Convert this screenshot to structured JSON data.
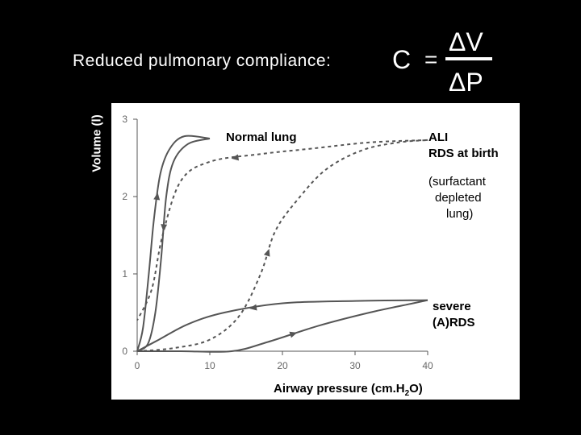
{
  "slide": {
    "title": "Reduced pulmonary compliance:",
    "formula": {
      "lhs": "C",
      "equals": "=",
      "numerator": "V",
      "denominator": "P",
      "delta_symbol": "Δ"
    }
  },
  "chart_data": {
    "type": "line",
    "xlabel_main": "Airway pressure (cm.H",
    "xlabel_sub": "2",
    "xlabel_tail": "O)",
    "ylabel": "Volume (l)",
    "xlim": [
      0,
      40
    ],
    "ylim": [
      0,
      3
    ],
    "x_ticks": [
      0,
      10,
      20,
      30,
      40
    ],
    "x_tick_labels": [
      "0",
      "10",
      "20",
      "30",
      "40"
    ],
    "y_ticks": [
      0,
      1,
      2,
      3
    ],
    "y_tick_labels": [
      "0",
      "1",
      "2",
      "3"
    ],
    "grid": false,
    "colors": {
      "line": "#555555",
      "panel": "#ffffff",
      "background": "#000000"
    },
    "series": [
      {
        "name": "Normal lung",
        "style": "solid",
        "inflation": [
          [
            0,
            0
          ],
          [
            0.8,
            0.3
          ],
          [
            1.6,
            1.0
          ],
          [
            2.3,
            1.7
          ],
          [
            3.2,
            2.3
          ],
          [
            4.5,
            2.62
          ],
          [
            6.5,
            2.78
          ],
          [
            10,
            2.75
          ]
        ],
        "deflation": [
          [
            10,
            2.75
          ],
          [
            7,
            2.68
          ],
          [
            5,
            2.45
          ],
          [
            4,
            2.0
          ],
          [
            3.3,
            1.2
          ],
          [
            2.5,
            0.5
          ],
          [
            1.5,
            0.1
          ],
          [
            0,
            0
          ]
        ]
      },
      {
        "name": "ALI RDS at birth (surfactant depleted lung)",
        "style": "dashed",
        "inflation": [
          [
            0,
            0
          ],
          [
            5,
            0.04
          ],
          [
            10,
            0.15
          ],
          [
            14,
            0.45
          ],
          [
            17,
            1.0
          ],
          [
            19,
            1.55
          ],
          [
            22,
            1.95
          ],
          [
            26,
            2.35
          ],
          [
            31,
            2.6
          ],
          [
            36,
            2.7
          ],
          [
            40,
            2.73
          ]
        ],
        "deflation": [
          [
            40,
            2.73
          ],
          [
            32,
            2.7
          ],
          [
            24,
            2.62
          ],
          [
            17,
            2.55
          ],
          [
            10,
            2.45
          ],
          [
            6,
            2.2
          ],
          [
            3.5,
            1.5
          ],
          [
            2,
            0.8
          ],
          [
            0,
            0.4
          ]
        ]
      },
      {
        "name": "severe (A)RDS",
        "style": "solid",
        "inflation": [
          [
            0,
            0
          ],
          [
            6,
            0
          ],
          [
            13,
            0
          ],
          [
            18,
            0.12
          ],
          [
            25,
            0.33
          ],
          [
            32,
            0.5
          ],
          [
            38,
            0.62
          ],
          [
            40,
            0.66
          ]
        ],
        "deflation": [
          [
            40,
            0.66
          ],
          [
            30,
            0.65
          ],
          [
            20,
            0.62
          ],
          [
            12,
            0.5
          ],
          [
            7,
            0.35
          ],
          [
            3,
            0.15
          ],
          [
            0,
            0
          ]
        ]
      }
    ],
    "annotations": [
      {
        "text": "Normal lung"
      },
      {
        "text": "ALI"
      },
      {
        "text": "RDS at birth"
      },
      {
        "text": "(surfactant"
      },
      {
        "text": "depleted"
      },
      {
        "text": "lung)"
      },
      {
        "text": "severe"
      },
      {
        "text": "(A)RDS"
      }
    ]
  }
}
